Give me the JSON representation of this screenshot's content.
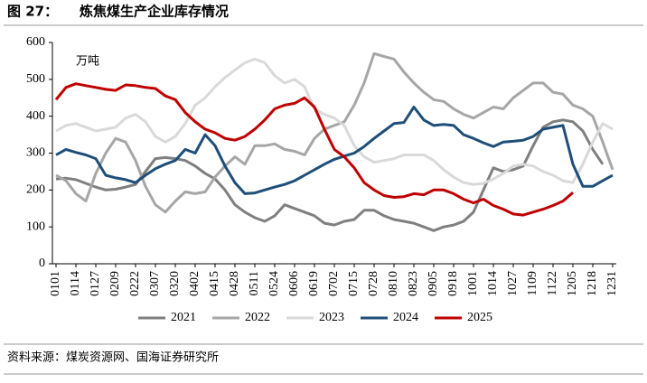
{
  "chart_data": {
    "type": "line",
    "figure_label": "图 27：",
    "title": "炼焦煤生产企业库存情况",
    "unit": "万吨",
    "source": "资料来源：煤炭资源网、国海证券研究所",
    "categories": [
      "0101",
      null,
      "0114",
      null,
      "0127",
      null,
      "0209",
      null,
      "0222",
      null,
      "0307",
      null,
      "0320",
      null,
      "0402",
      null,
      "0415",
      null,
      "0428",
      null,
      "0511",
      null,
      "0524",
      null,
      "0606",
      null,
      "0619",
      null,
      "0702",
      null,
      "0715",
      null,
      "0728",
      null,
      "0810",
      null,
      "0823",
      null,
      "0905",
      null,
      "0918",
      null,
      "1001",
      null,
      "1014",
      null,
      "1027",
      null,
      "1109",
      null,
      "1122",
      null,
      "1205",
      null,
      "1218",
      null,
      "1231"
    ],
    "ylim": [
      0,
      600
    ],
    "yticks": [
      0,
      100,
      200,
      300,
      400,
      500,
      600
    ],
    "grid": false,
    "legend": "bottom",
    "series": [
      {
        "name": "2021",
        "color": "#7f7f7f",
        "values": [
          230,
          232,
          228,
          218,
          208,
          200,
          202,
          208,
          215,
          250,
          285,
          288,
          285,
          280,
          265,
          245,
          230,
          200,
          160,
          140,
          125,
          115,
          130,
          160,
          150,
          140,
          130,
          110,
          105,
          115,
          120,
          145,
          145,
          130,
          120,
          115,
          110,
          100,
          90,
          100,
          105,
          115,
          140,
          200,
          260,
          250,
          255,
          265,
          320,
          370,
          385,
          390,
          385,
          360,
          310,
          270,
          null
        ]
      },
      {
        "name": "2022",
        "color": "#a6a6a6",
        "values": [
          240,
          225,
          190,
          170,
          245,
          300,
          340,
          330,
          280,
          210,
          160,
          140,
          170,
          195,
          190,
          195,
          235,
          265,
          290,
          270,
          320,
          320,
          325,
          310,
          305,
          295,
          340,
          365,
          375,
          385,
          430,
          490,
          570,
          562,
          555,
          520,
          490,
          465,
          445,
          440,
          420,
          405,
          395,
          410,
          425,
          420,
          450,
          470,
          490,
          490,
          465,
          460,
          430,
          420,
          400,
          330,
          255
        ]
      },
      {
        "name": "2023",
        "color": "#d9d9d9",
        "values": [
          360,
          375,
          380,
          370,
          360,
          365,
          370,
          395,
          405,
          385,
          345,
          330,
          345,
          380,
          430,
          450,
          480,
          505,
          525,
          545,
          555,
          545,
          510,
          490,
          500,
          480,
          420,
          405,
          395,
          375,
          320,
          290,
          275,
          280,
          285,
          295,
          295,
          295,
          280,
          255,
          235,
          220,
          215,
          218,
          230,
          245,
          265,
          270,
          265,
          250,
          240,
          225,
          220,
          270,
          330,
          380,
          365
        ]
      },
      {
        "name": "2024",
        "color": "#1f4e79",
        "values": [
          295,
          310,
          302,
          295,
          285,
          240,
          233,
          228,
          220,
          240,
          258,
          270,
          280,
          310,
          300,
          350,
          320,
          265,
          220,
          190,
          192,
          200,
          208,
          215,
          225,
          240,
          255,
          270,
          283,
          292,
          300,
          318,
          340,
          360,
          380,
          383,
          425,
          390,
          375,
          378,
          375,
          350,
          340,
          328,
          318,
          330,
          332,
          335,
          345,
          365,
          370,
          375,
          270,
          210,
          210,
          225,
          240
        ]
      },
      {
        "name": "2025",
        "color": "#c00000",
        "values": [
          445,
          478,
          488,
          483,
          478,
          473,
          470,
          485,
          483,
          478,
          475,
          455,
          445,
          410,
          385,
          365,
          355,
          340,
          335,
          345,
          365,
          390,
          420,
          430,
          435,
          450,
          425,
          365,
          310,
          290,
          260,
          220,
          200,
          185,
          180,
          182,
          190,
          187,
          200,
          200,
          190,
          175,
          165,
          175,
          158,
          148,
          135,
          132,
          140,
          148,
          158,
          170,
          193,
          null,
          null,
          null,
          null
        ]
      }
    ]
  }
}
